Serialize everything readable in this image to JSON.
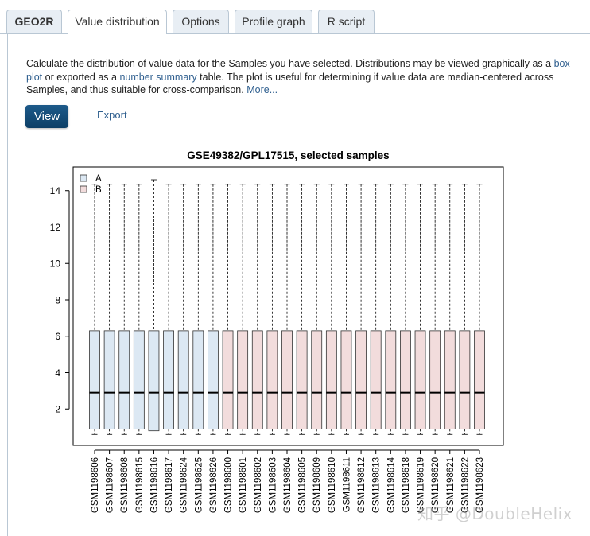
{
  "tabs": [
    {
      "label": "GEO2R"
    },
    {
      "label": "Value distribution"
    },
    {
      "label": "Options"
    },
    {
      "label": "Profile graph"
    },
    {
      "label": "R script"
    }
  ],
  "description": {
    "part1": "Calculate the distribution of value data for the Samples you have selected. Distributions may be viewed graphically as a ",
    "link1": "box plot",
    "part2": " or exported as a ",
    "link2": "number summary",
    "part3": " table. The plot is useful for determining if value data are median-centered across Samples, and thus suitable for cross-comparison. ",
    "more": "More..."
  },
  "buttons": {
    "view": "View",
    "export": "Export"
  },
  "watermark": "知乎 @DoubleHelix",
  "chart_data": {
    "type": "boxplot",
    "title": "GSE49382/GPL17515, selected samples",
    "ylim": [
      0.0,
      15.3
    ],
    "yticks": [
      2,
      4,
      6,
      8,
      10,
      12,
      14
    ],
    "legend": {
      "placement": "top-left",
      "entries": [
        {
          "label": "A",
          "color": "#dce8f3"
        },
        {
          "label": "B",
          "color": "#f2dcdc"
        }
      ]
    },
    "samples": [
      {
        "name": "GSM1198606",
        "group": "A",
        "min": 0.6,
        "q1": 0.9,
        "median": 2.9,
        "q3": 6.3,
        "max": 14.35
      },
      {
        "name": "GSM1198607",
        "group": "A",
        "min": 0.6,
        "q1": 0.9,
        "median": 2.9,
        "q3": 6.3,
        "max": 14.35
      },
      {
        "name": "GSM1198608",
        "group": "A",
        "min": 0.6,
        "q1": 0.9,
        "median": 2.9,
        "q3": 6.3,
        "max": 14.35
      },
      {
        "name": "GSM1198615",
        "group": "A",
        "min": 0.6,
        "q1": 0.9,
        "median": 2.9,
        "q3": 6.3,
        "max": 14.35
      },
      {
        "name": "GSM1198616",
        "group": "A",
        "min": 0.8,
        "q1": 0.8,
        "median": 2.9,
        "q3": 6.3,
        "max": 14.6
      },
      {
        "name": "GSM1198617",
        "group": "A",
        "min": 0.6,
        "q1": 0.9,
        "median": 2.9,
        "q3": 6.3,
        "max": 14.35
      },
      {
        "name": "GSM1198624",
        "group": "A",
        "min": 0.6,
        "q1": 0.9,
        "median": 2.9,
        "q3": 6.3,
        "max": 14.35
      },
      {
        "name": "GSM1198625",
        "group": "A",
        "min": 0.6,
        "q1": 0.9,
        "median": 2.9,
        "q3": 6.3,
        "max": 14.35
      },
      {
        "name": "GSM1198626",
        "group": "A",
        "min": 0.6,
        "q1": 0.9,
        "median": 2.9,
        "q3": 6.3,
        "max": 14.35
      },
      {
        "name": "GSM1198600",
        "group": "B",
        "min": 0.6,
        "q1": 0.9,
        "median": 2.9,
        "q3": 6.3,
        "max": 14.35
      },
      {
        "name": "GSM1198601",
        "group": "B",
        "min": 0.6,
        "q1": 0.9,
        "median": 2.9,
        "q3": 6.3,
        "max": 14.35
      },
      {
        "name": "GSM1198602",
        "group": "B",
        "min": 0.6,
        "q1": 0.9,
        "median": 2.9,
        "q3": 6.3,
        "max": 14.35
      },
      {
        "name": "GSM1198603",
        "group": "B",
        "min": 0.6,
        "q1": 0.9,
        "median": 2.9,
        "q3": 6.3,
        "max": 14.35
      },
      {
        "name": "GSM1198604",
        "group": "B",
        "min": 0.6,
        "q1": 0.9,
        "median": 2.9,
        "q3": 6.3,
        "max": 14.35
      },
      {
        "name": "GSM1198605",
        "group": "B",
        "min": 0.6,
        "q1": 0.9,
        "median": 2.9,
        "q3": 6.3,
        "max": 14.35
      },
      {
        "name": "GSM1198609",
        "group": "B",
        "min": 0.6,
        "q1": 0.9,
        "median": 2.9,
        "q3": 6.3,
        "max": 14.35
      },
      {
        "name": "GSM1198610",
        "group": "B",
        "min": 0.6,
        "q1": 0.9,
        "median": 2.9,
        "q3": 6.3,
        "max": 14.35
      },
      {
        "name": "GSM1198611",
        "group": "B",
        "min": 0.6,
        "q1": 0.9,
        "median": 2.9,
        "q3": 6.3,
        "max": 14.35
      },
      {
        "name": "GSM1198612",
        "group": "B",
        "min": 0.6,
        "q1": 0.9,
        "median": 2.9,
        "q3": 6.3,
        "max": 14.35
      },
      {
        "name": "GSM1198613",
        "group": "B",
        "min": 0.6,
        "q1": 0.9,
        "median": 2.9,
        "q3": 6.3,
        "max": 14.35
      },
      {
        "name": "GSM1198614",
        "group": "B",
        "min": 0.6,
        "q1": 0.9,
        "median": 2.9,
        "q3": 6.3,
        "max": 14.35
      },
      {
        "name": "GSM1198618",
        "group": "B",
        "min": 0.6,
        "q1": 0.9,
        "median": 2.9,
        "q3": 6.3,
        "max": 14.35
      },
      {
        "name": "GSM1198619",
        "group": "B",
        "min": 0.6,
        "q1": 0.9,
        "median": 2.9,
        "q3": 6.3,
        "max": 14.35
      },
      {
        "name": "GSM1198620",
        "group": "B",
        "min": 0.6,
        "q1": 0.9,
        "median": 2.9,
        "q3": 6.3,
        "max": 14.35
      },
      {
        "name": "GSM1198621",
        "group": "B",
        "min": 0.6,
        "q1": 0.9,
        "median": 2.9,
        "q3": 6.3,
        "max": 14.35
      },
      {
        "name": "GSM1198622",
        "group": "B",
        "min": 0.6,
        "q1": 0.9,
        "median": 2.9,
        "q3": 6.3,
        "max": 14.35
      },
      {
        "name": "GSM1198623",
        "group": "B",
        "min": 0.6,
        "q1": 0.9,
        "median": 2.9,
        "q3": 6.3,
        "max": 14.35
      }
    ]
  }
}
